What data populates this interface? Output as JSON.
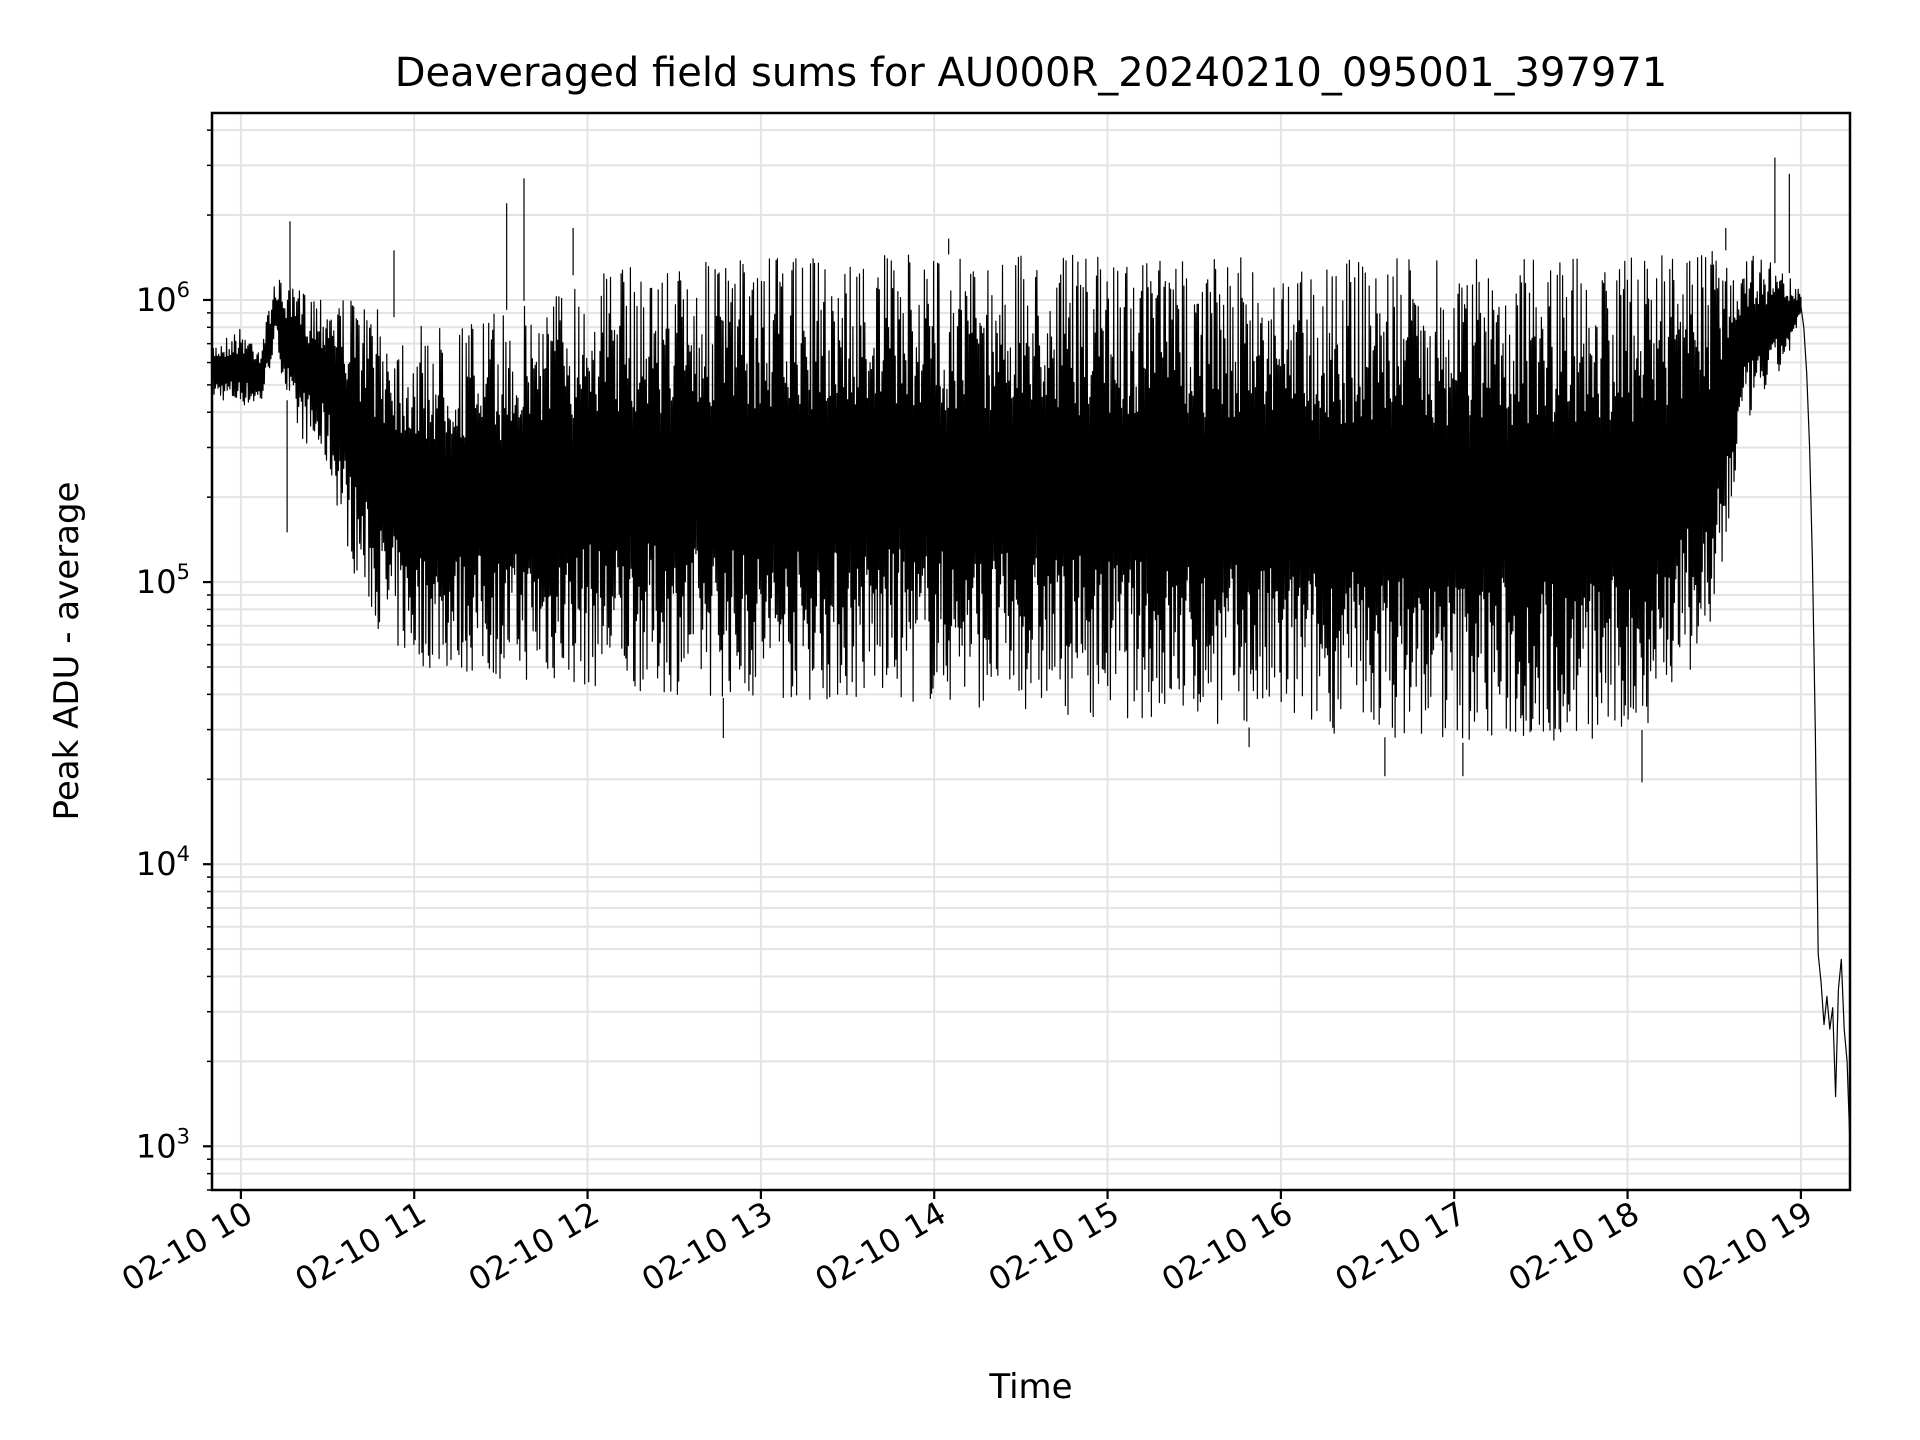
{
  "chart_data": {
    "type": "line",
    "title": "Deaveraged field sums for AU000R_20240210_095001_397971",
    "xlabel": "Time",
    "ylabel": "Peak ADU - average",
    "yscale": "log",
    "ylim": [
      700,
      4600000
    ],
    "xlim": [
      "2024-02-10 09:50",
      "2024-02-10 19:17"
    ],
    "grid": true,
    "x_tick_values": [
      "2024-02-10 10:00",
      "2024-02-10 11:00",
      "2024-02-10 12:00",
      "2024-02-10 13:00",
      "2024-02-10 14:00",
      "2024-02-10 15:00",
      "2024-02-10 16:00",
      "2024-02-10 17:00",
      "2024-02-10 18:00",
      "2024-02-10 19:00"
    ],
    "x_tick_labels": [
      "02-10 10",
      "02-10 11",
      "02-10 12",
      "02-10 13",
      "02-10 14",
      "02-10 15",
      "02-10 16",
      "02-10 17",
      "02-10 18",
      "02-10 19"
    ],
    "y_tick_values": [
      1000,
      10000,
      100000,
      1000000
    ],
    "y_tick_labels": [
      {
        "base": "10",
        "exp": "3"
      },
      {
        "base": "10",
        "exp": "4"
      },
      {
        "base": "10",
        "exp": "5"
      },
      {
        "base": "10",
        "exp": "6"
      }
    ],
    "series": [
      {
        "color": "#000000",
        "envelope": [
          {
            "x": "2024-02-10 09:50",
            "low": 450000,
            "high": 700000
          },
          {
            "x": "2024-02-10 10:00",
            "low": 420000,
            "high": 800000
          },
          {
            "x": "2024-02-10 10:07",
            "low": 420000,
            "high": 700000
          },
          {
            "x": "2024-02-10 10:12",
            "low": 700000,
            "high": 1200000
          },
          {
            "x": "2024-02-10 10:18",
            "low": 350000,
            "high": 1100000
          },
          {
            "x": "2024-02-10 10:30",
            "low": 250000,
            "high": 1100000
          },
          {
            "x": "2024-02-10 10:40",
            "low": 100000,
            "high": 1000000
          },
          {
            "x": "2024-02-10 10:50",
            "low": 60000,
            "high": 900000
          },
          {
            "x": "2024-02-10 11:00",
            "low": 50000,
            "high": 800000
          },
          {
            "x": "2024-02-10 11:30",
            "low": 45000,
            "high": 900000
          },
          {
            "x": "2024-02-10 12:00",
            "low": 42000,
            "high": 1300000
          },
          {
            "x": "2024-02-10 12:30",
            "low": 40000,
            "high": 1350000
          },
          {
            "x": "2024-02-10 13:00",
            "low": 38000,
            "high": 1400000
          },
          {
            "x": "2024-02-10 14:00",
            "low": 37000,
            "high": 1450000
          },
          {
            "x": "2024-02-10 15:00",
            "low": 33000,
            "high": 1450000
          },
          {
            "x": "2024-02-10 16:00",
            "low": 30000,
            "high": 1400000
          },
          {
            "x": "2024-02-10 17:00",
            "low": 27000,
            "high": 1400000
          },
          {
            "x": "2024-02-10 18:00",
            "low": 26000,
            "high": 1450000
          },
          {
            "x": "2024-02-10 18:30",
            "low": 60000,
            "high": 1500000
          },
          {
            "x": "2024-02-10 18:40",
            "low": 350000,
            "high": 1500000
          },
          {
            "x": "2024-02-10 18:55",
            "low": 600000,
            "high": 1300000
          },
          {
            "x": "2024-02-10 19:00",
            "low": 850000,
            "high": 1050000
          }
        ],
        "spikes": [
          {
            "x": "2024-02-10 10:17",
            "y": 1900000
          },
          {
            "x": "2024-02-10 10:16",
            "y": 150000
          },
          {
            "x": "2024-02-10 10:53",
            "y": 1500000
          },
          {
            "x": "2024-02-10 11:32",
            "y": 2200000
          },
          {
            "x": "2024-02-10 11:38",
            "y": 2700000
          },
          {
            "x": "2024-02-10 11:55",
            "y": 1800000
          },
          {
            "x": "2024-02-10 12:47",
            "y": 28000
          },
          {
            "x": "2024-02-10 14:05",
            "y": 1650000
          },
          {
            "x": "2024-02-10 15:49",
            "y": 26000
          },
          {
            "x": "2024-02-10 16:36",
            "y": 20500
          },
          {
            "x": "2024-02-10 17:03",
            "y": 20500
          },
          {
            "x": "2024-02-10 18:05",
            "y": 19500
          },
          {
            "x": "2024-02-10 18:34",
            "y": 1800000
          },
          {
            "x": "2024-02-10 18:51",
            "y": 3200000
          },
          {
            "x": "2024-02-10 18:56",
            "y": 2800000
          }
        ],
        "tail": [
          {
            "x": "2024-02-10 19:00",
            "y": 950000
          },
          {
            "x": "2024-02-10 19:01",
            "y": 800000
          },
          {
            "x": "2024-02-10 19:02",
            "y": 550000
          },
          {
            "x": "2024-02-10 19:03",
            "y": 300000
          },
          {
            "x": "2024-02-10 19:04",
            "y": 120000
          },
          {
            "x": "2024-02-10 19:05",
            "y": 30000
          },
          {
            "x": "2024-02-10 19:06",
            "y": 4800
          },
          {
            "x": "2024-02-10 19:07",
            "y": 3800
          },
          {
            "x": "2024-02-10 19:08",
            "y": 2700
          },
          {
            "x": "2024-02-10 19:09",
            "y": 3400
          },
          {
            "x": "2024-02-10 19:10",
            "y": 2600
          },
          {
            "x": "2024-02-10 19:11",
            "y": 3100
          },
          {
            "x": "2024-02-10 19:12",
            "y": 1500
          },
          {
            "x": "2024-02-10 19:13",
            "y": 3600
          },
          {
            "x": "2024-02-10 19:14",
            "y": 4600
          },
          {
            "x": "2024-02-10 19:15",
            "y": 2600
          },
          {
            "x": "2024-02-10 19:16",
            "y": 2000
          },
          {
            "x": "2024-02-10 19:17",
            "y": 1000
          }
        ]
      }
    ]
  }
}
